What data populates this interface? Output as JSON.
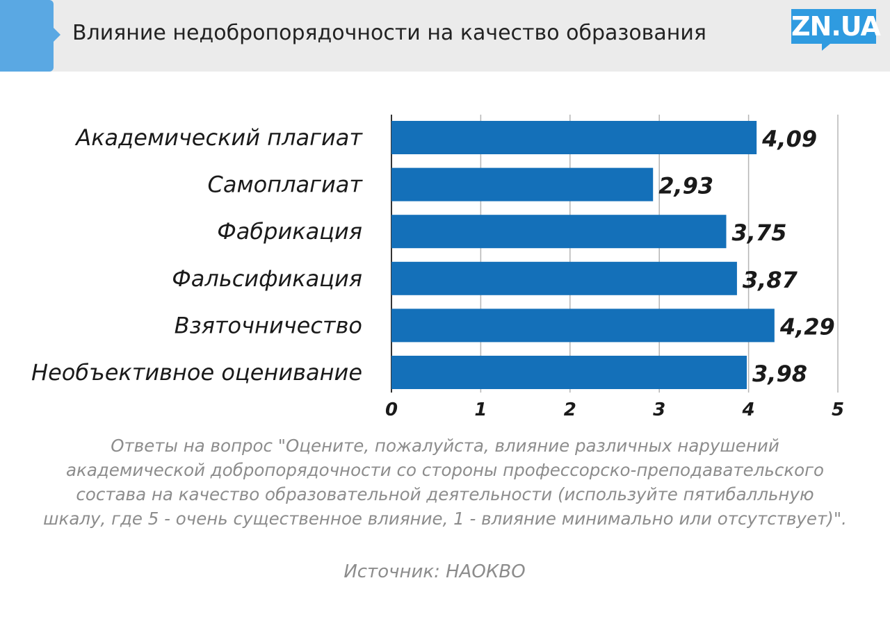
{
  "header": {
    "title": "Влияние недобропорядочности на качество образования",
    "logo_text": "ZN.UA"
  },
  "colors": {
    "bar": "#1470b9",
    "header_bg": "#ebebeb",
    "header_tab": "#5aa8e3",
    "logo": "#2f9be0",
    "caption": "#8c8c8c"
  },
  "chart_data": {
    "type": "bar",
    "orientation": "horizontal",
    "title": "Влияние недобропорядочности на качество образования",
    "categories": [
      "Академический плагиат",
      "Самоплагиат",
      "Фабрикация",
      "Фальсификация",
      "Взяточничество",
      "Необъективное оценивание"
    ],
    "values": [
      4.09,
      2.93,
      3.75,
      3.87,
      4.29,
      3.98
    ],
    "value_labels": [
      "4,09",
      "2,93",
      "3,75",
      "3,87",
      "4,29",
      "3,98"
    ],
    "xlim": [
      0,
      5
    ],
    "x_ticks": [
      0,
      1,
      2,
      3,
      4,
      5
    ],
    "grid": true,
    "xlabel": "",
    "ylabel": ""
  },
  "caption": {
    "lines": [
      "Ответы на вопрос \"Оцените, пожалуйста, влияние различных нарушений",
      "академической добропорядочности со стороны профессорско-преподавательского",
      "состава на качество образовательной деятельности (используйте пятибалльную",
      "шкалу, где 5 - очень существенное влияние, 1 - влияние минимально или отсутствует)\"."
    ]
  },
  "source": "Источник: НАОКВО"
}
